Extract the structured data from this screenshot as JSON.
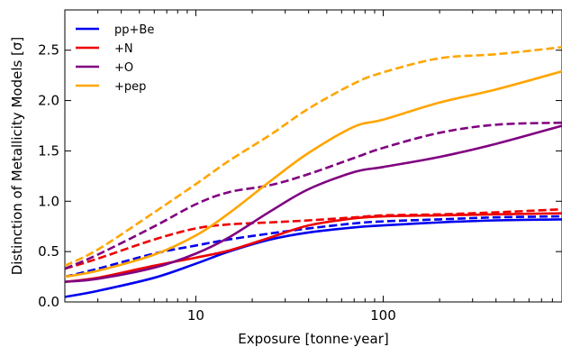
{
  "chart_data": {
    "type": "line",
    "title": "",
    "xlabel": "Exposure [tonne·year]",
    "ylabel": "Distinction of Metallicity Models [σ]",
    "xscale": "log",
    "xlim": [
      2,
      900
    ],
    "ylim": [
      0.0,
      2.9
    ],
    "x_ticks": [
      10,
      100
    ],
    "x_tick_labels": [
      "10",
      "100"
    ],
    "y_ticks": [
      0.0,
      0.5,
      1.0,
      1.5,
      2.0,
      2.5
    ],
    "y_tick_labels": [
      "0.0",
      "0.5",
      "1.0",
      "1.5",
      "2.0",
      "2.5"
    ],
    "grid": false,
    "legend_position": "top-left",
    "series": [
      {
        "name": "pp+Be",
        "color": "#0000ee",
        "style": "solid",
        "x": [
          2,
          3,
          6,
          10,
          15,
          25,
          40,
          70,
          100,
          200,
          400,
          900
        ],
        "y": [
          0.05,
          0.11,
          0.24,
          0.38,
          0.5,
          0.62,
          0.69,
          0.74,
          0.76,
          0.79,
          0.81,
          0.82
        ]
      },
      {
        "name": "",
        "color": "#0000ee",
        "style": "dashed",
        "x": [
          2,
          3,
          6,
          10,
          15,
          25,
          40,
          70,
          100,
          200,
          400,
          900
        ],
        "y": [
          0.25,
          0.33,
          0.48,
          0.56,
          0.62,
          0.68,
          0.73,
          0.78,
          0.8,
          0.82,
          0.84,
          0.85
        ]
      },
      {
        "name": "+N",
        "color": "#ee0000",
        "style": "solid",
        "x": [
          2,
          3,
          6,
          10,
          15,
          25,
          40,
          70,
          100,
          200,
          400,
          900
        ],
        "y": [
          0.2,
          0.24,
          0.36,
          0.44,
          0.51,
          0.64,
          0.76,
          0.83,
          0.85,
          0.86,
          0.87,
          0.88
        ]
      },
      {
        "name": "",
        "color": "#ee0000",
        "style": "dashed",
        "x": [
          2,
          3,
          6,
          10,
          15,
          25,
          40,
          70,
          100,
          200,
          400,
          900
        ],
        "y": [
          0.33,
          0.43,
          0.62,
          0.73,
          0.77,
          0.79,
          0.81,
          0.84,
          0.86,
          0.87,
          0.89,
          0.92
        ]
      },
      {
        "name": "+O",
        "color": "#800080",
        "style": "solid",
        "x": [
          2,
          3,
          6,
          10,
          15,
          25,
          40,
          70,
          100,
          200,
          400,
          900
        ],
        "y": [
          0.2,
          0.23,
          0.34,
          0.48,
          0.64,
          0.9,
          1.12,
          1.29,
          1.34,
          1.44,
          1.57,
          1.75
        ]
      },
      {
        "name": "",
        "color": "#800080",
        "style": "dashed",
        "x": [
          2,
          3,
          6,
          10,
          15,
          25,
          40,
          70,
          100,
          200,
          400,
          900
        ],
        "y": [
          0.33,
          0.47,
          0.75,
          0.97,
          1.09,
          1.16,
          1.27,
          1.43,
          1.53,
          1.68,
          1.76,
          1.78
        ]
      },
      {
        "name": "+pep",
        "color": "#ffa500",
        "style": "solid",
        "x": [
          2,
          3,
          6,
          10,
          15,
          25,
          40,
          70,
          100,
          200,
          400,
          900
        ],
        "y": [
          0.25,
          0.31,
          0.47,
          0.66,
          0.88,
          1.2,
          1.48,
          1.74,
          1.81,
          1.98,
          2.11,
          2.29
        ]
      },
      {
        "name": "",
        "color": "#ffa500",
        "style": "dashed",
        "x": [
          2,
          3,
          6,
          10,
          15,
          25,
          40,
          70,
          100,
          200,
          400,
          900
        ],
        "y": [
          0.36,
          0.52,
          0.89,
          1.17,
          1.4,
          1.66,
          1.92,
          2.17,
          2.28,
          2.42,
          2.46,
          2.53
        ]
      }
    ]
  }
}
